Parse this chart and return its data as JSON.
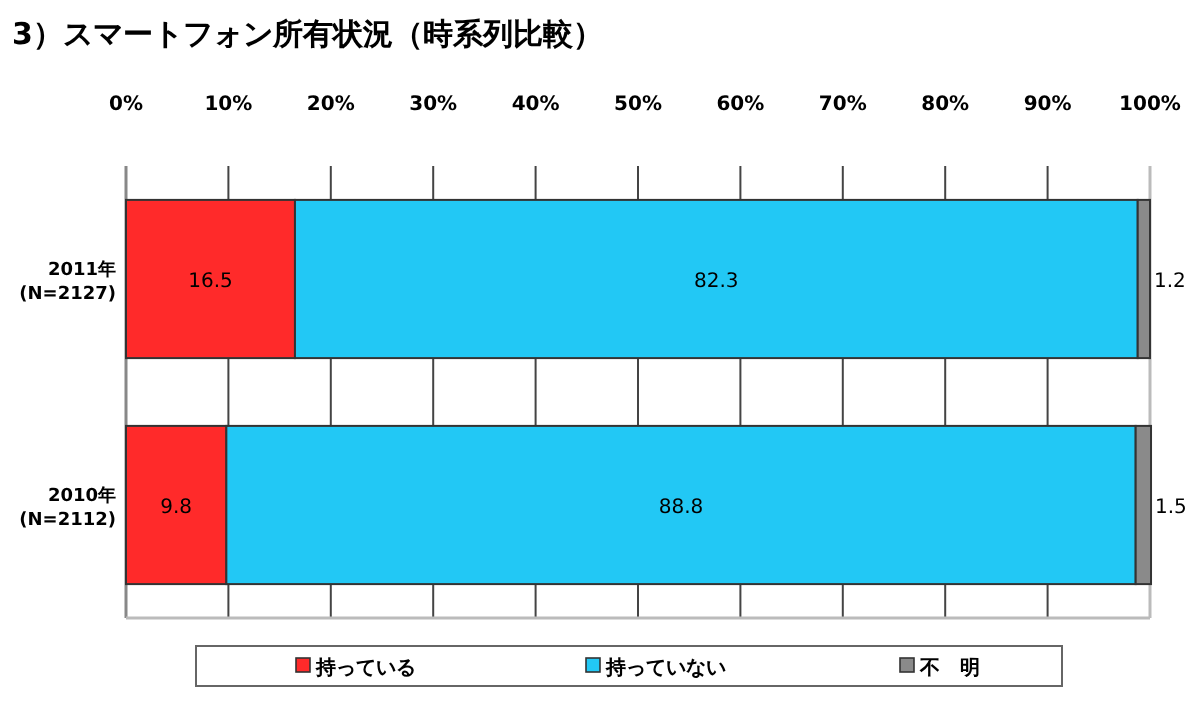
{
  "chart_data": {
    "type": "bar",
    "title": "3）スマートフォン所有状況（時系列比較）",
    "orientation": "horizontal",
    "stacked": true,
    "data_labels": true,
    "grid": "x",
    "legend": "bottom",
    "categories": [
      "2011年\n(N=2127)",
      "2010年\n(N=2112)"
    ],
    "series": [
      {
        "name": "持っている",
        "color": "#ff2a2a",
        "values": [
          16.5,
          9.8
        ]
      },
      {
        "name": "持っていない",
        "color": "#22c8f5",
        "values": [
          82.3,
          88.8
        ]
      },
      {
        "name": "不　明",
        "color": "#8a8a8a",
        "values": [
          1.2,
          1.5
        ]
      }
    ],
    "xlim": [
      0,
      100
    ],
    "xticks": [
      {
        "value": 0,
        "label": "0%"
      },
      {
        "value": 10,
        "label": "10%"
      },
      {
        "value": 20,
        "label": "20%"
      },
      {
        "value": 30,
        "label": "30%"
      },
      {
        "value": 40,
        "label": "40%"
      },
      {
        "value": 50,
        "label": "50%"
      },
      {
        "value": 60,
        "label": "60%"
      },
      {
        "value": 70,
        "label": "70%"
      },
      {
        "value": 80,
        "label": "80%"
      },
      {
        "value": 90,
        "label": "90%"
      },
      {
        "value": 100,
        "label": "100%"
      }
    ]
  }
}
